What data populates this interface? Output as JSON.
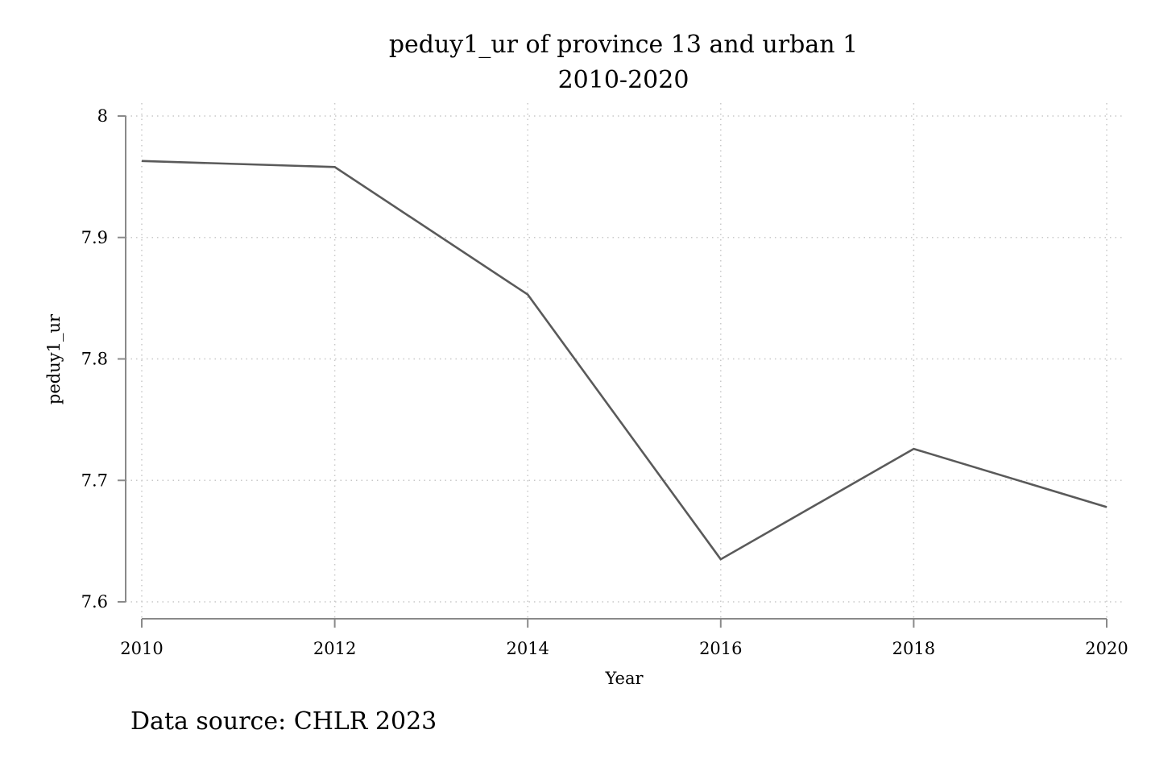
{
  "chart_data": {
    "type": "line",
    "title": "peduy1_ur of province 13 and urban 1",
    "subtitle": "2010-2020",
    "xlabel": "Year",
    "ylabel": "peduy1_ur",
    "x": [
      2010,
      2012,
      2014,
      2016,
      2018,
      2020
    ],
    "series": [
      {
        "values": [
          7.963,
          7.958,
          7.853,
          7.635,
          7.726,
          7.678
        ]
      }
    ],
    "xticks": [
      "2010",
      "2012",
      "2014",
      "2016",
      "2018",
      "2020"
    ],
    "yticks": [
      "8",
      "7.9",
      "7.8",
      "7.7",
      "7.6"
    ],
    "xlim": [
      2010,
      2020
    ],
    "ylim": [
      7.6,
      8.0
    ],
    "grid": true,
    "legend": "none",
    "note": "Data source: CHLR 2023",
    "line_color": "#5a5a5a"
  }
}
